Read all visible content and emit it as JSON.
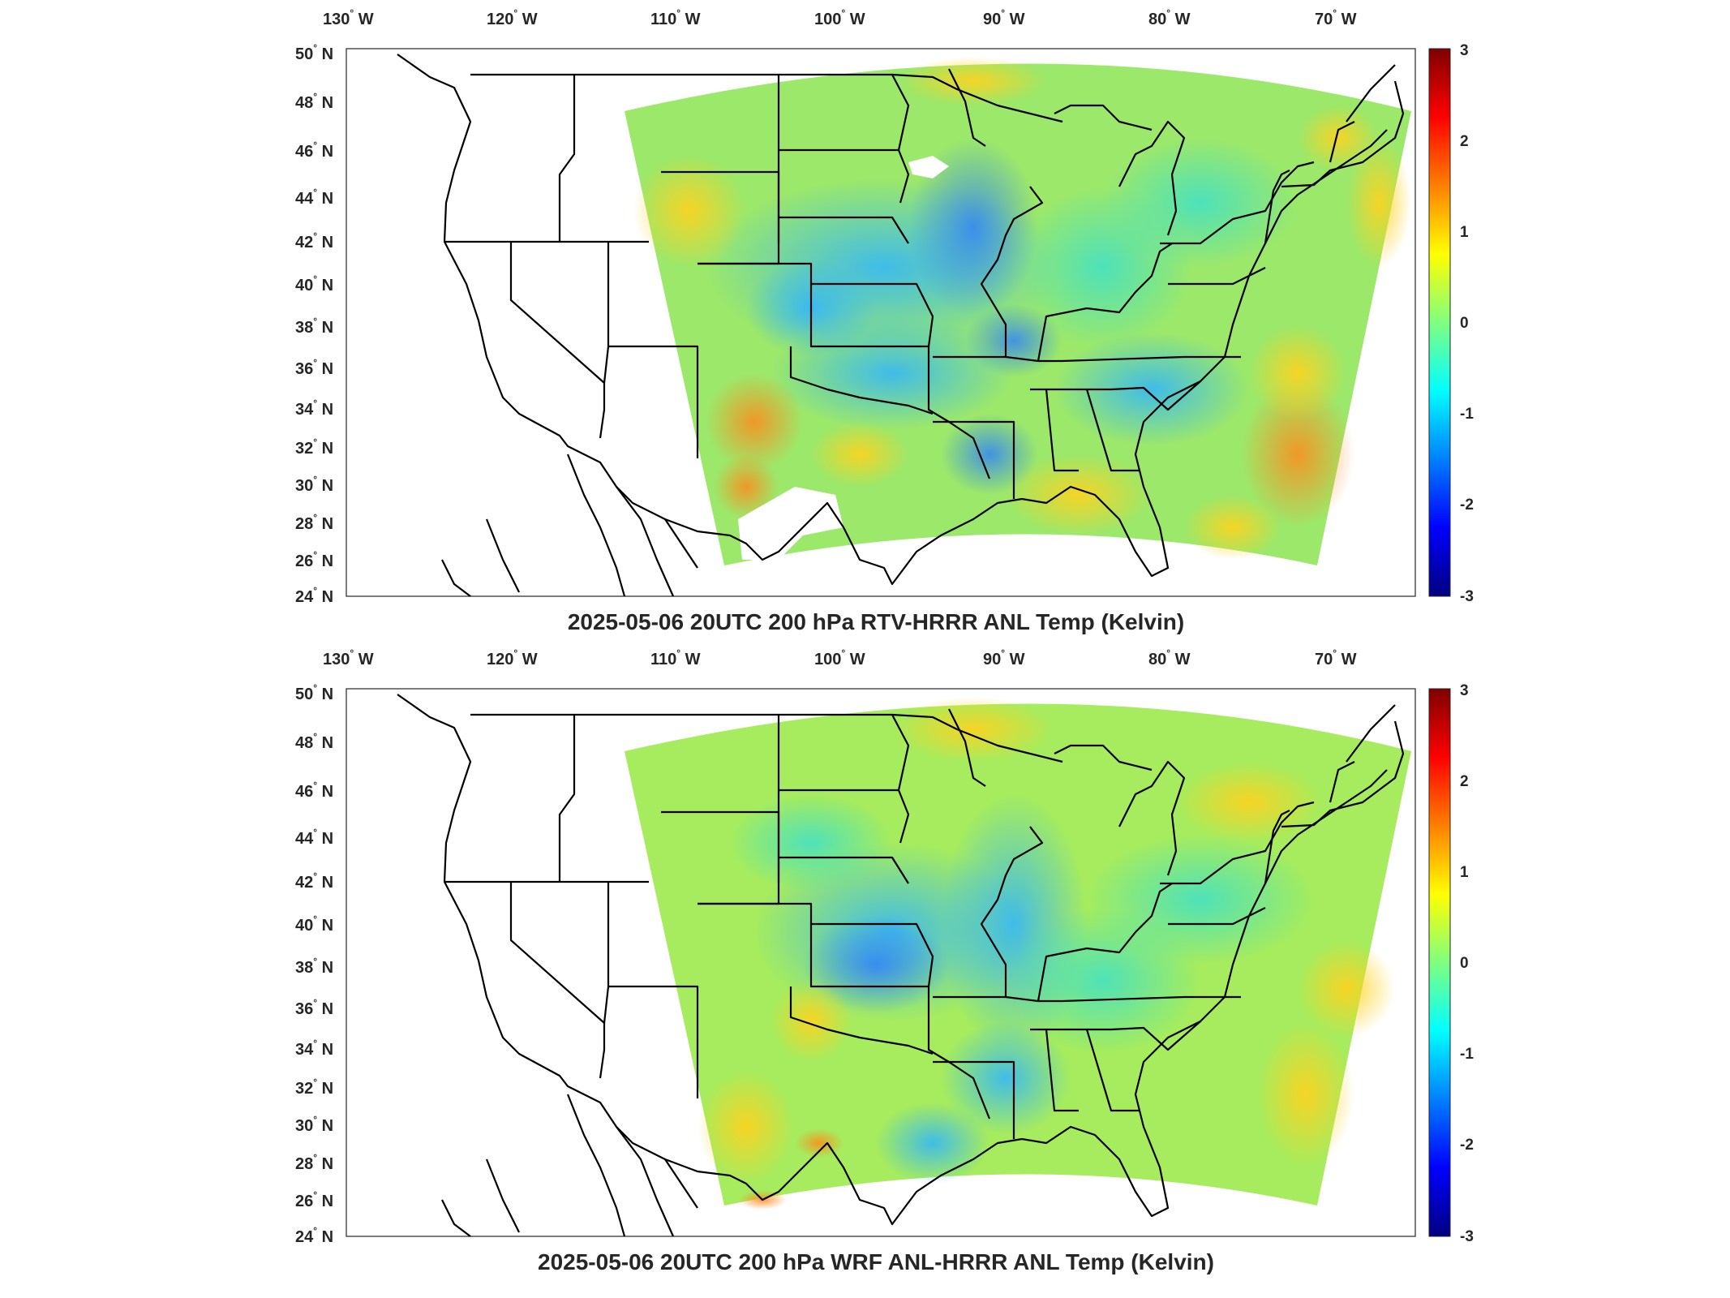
{
  "panels": [
    {
      "title": "2025-05-06 20UTC 200 hPa RTV-HRRR ANL Temp (Kelvin)",
      "lon_labels": [
        "130",
        "120",
        "110",
        "100",
        "90",
        "80",
        "70"
      ],
      "lon_suffix": "W",
      "lat_labels": [
        "50",
        "48",
        "46",
        "44",
        "42",
        "40",
        "38",
        "36",
        "34",
        "32",
        "30",
        "28",
        "26",
        "24"
      ],
      "lat_suffix": "N",
      "colorbar": {
        "ticks": [
          "3",
          "2",
          "1",
          "0",
          "-1",
          "-2",
          "-3"
        ],
        "min": -3,
        "max": 3
      }
    },
    {
      "title": "2025-05-06 20UTC 200 hPa WRF ANL-HRRR ANL Temp (Kelvin)",
      "lon_labels": [
        "130",
        "120",
        "110",
        "100",
        "90",
        "80",
        "70"
      ],
      "lon_suffix": "W",
      "lat_labels": [
        "50",
        "48",
        "46",
        "44",
        "42",
        "40",
        "38",
        "36",
        "34",
        "32",
        "30",
        "28",
        "26",
        "24"
      ],
      "lat_suffix": "N",
      "colorbar": {
        "ticks": [
          "3",
          "2",
          "1",
          "0",
          "-1",
          "-2",
          "-3"
        ],
        "min": -3,
        "max": 3
      }
    }
  ],
  "colormap": "jet",
  "colors": {
    "field_base": "#9ce86a",
    "cool": "#33c8ff",
    "cold": "#2e8bff",
    "warm": "#ffd21e",
    "hot": "#ff8a1c",
    "missing": "#ffffff"
  }
}
